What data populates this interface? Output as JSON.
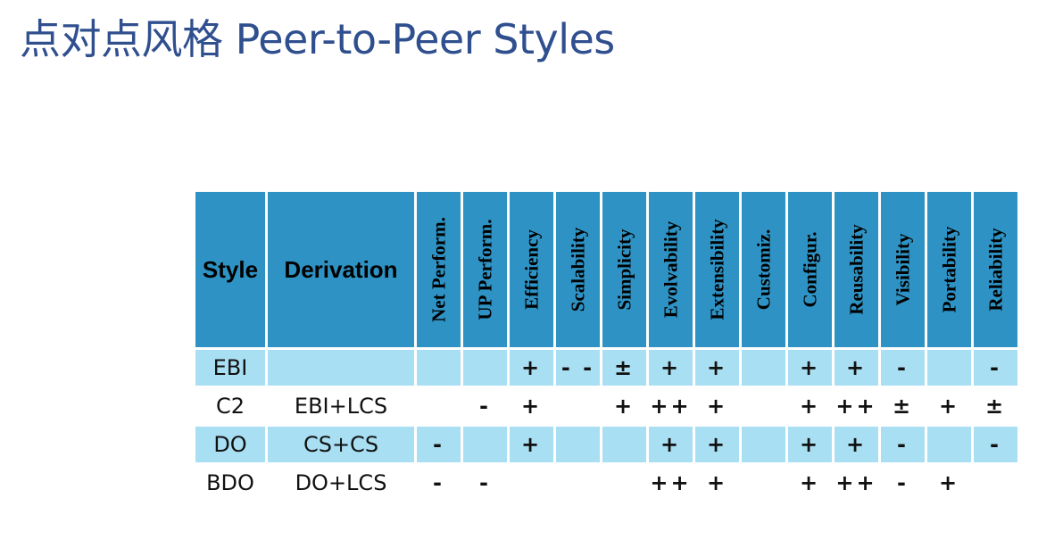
{
  "title": "点对点风格 Peer-to-Peer Styles",
  "table": {
    "headers": {
      "style": "Style",
      "derivation": "Derivation",
      "properties": [
        "Net Perform.",
        "UP Perform.",
        "Efficiency",
        "Scalability",
        "Simplicity",
        "Evolvability",
        "Extensibility",
        "Customiz.",
        "Configur.",
        "Reusability",
        "Visibility",
        "Portability",
        "Reliability"
      ]
    },
    "rows": [
      {
        "style": "EBI",
        "derivation": "",
        "values": [
          "",
          "",
          "+",
          "- -",
          "±",
          "+",
          "+",
          "",
          "+",
          "+",
          "-",
          "",
          "-"
        ]
      },
      {
        "style": "C2",
        "derivation": "EBI+LCS",
        "values": [
          "",
          "-",
          "+",
          "",
          "+",
          "++",
          "+",
          "",
          "+",
          "++",
          "±",
          "+",
          "±"
        ]
      },
      {
        "style": "DO",
        "derivation": "CS+CS",
        "values": [
          "-",
          "",
          "+",
          "",
          "",
          "+",
          "+",
          "",
          "+",
          "+",
          "-",
          "",
          "-"
        ]
      },
      {
        "style": "BDO",
        "derivation": "DO+LCS",
        "values": [
          "-",
          "-",
          "",
          "",
          "",
          "++",
          "+",
          "",
          "+",
          "++",
          "-",
          "+",
          ""
        ]
      }
    ]
  },
  "colors": {
    "title": "#2f4f8f",
    "header_fill": "#2e93c4",
    "row_shade": "#a9dff2"
  }
}
